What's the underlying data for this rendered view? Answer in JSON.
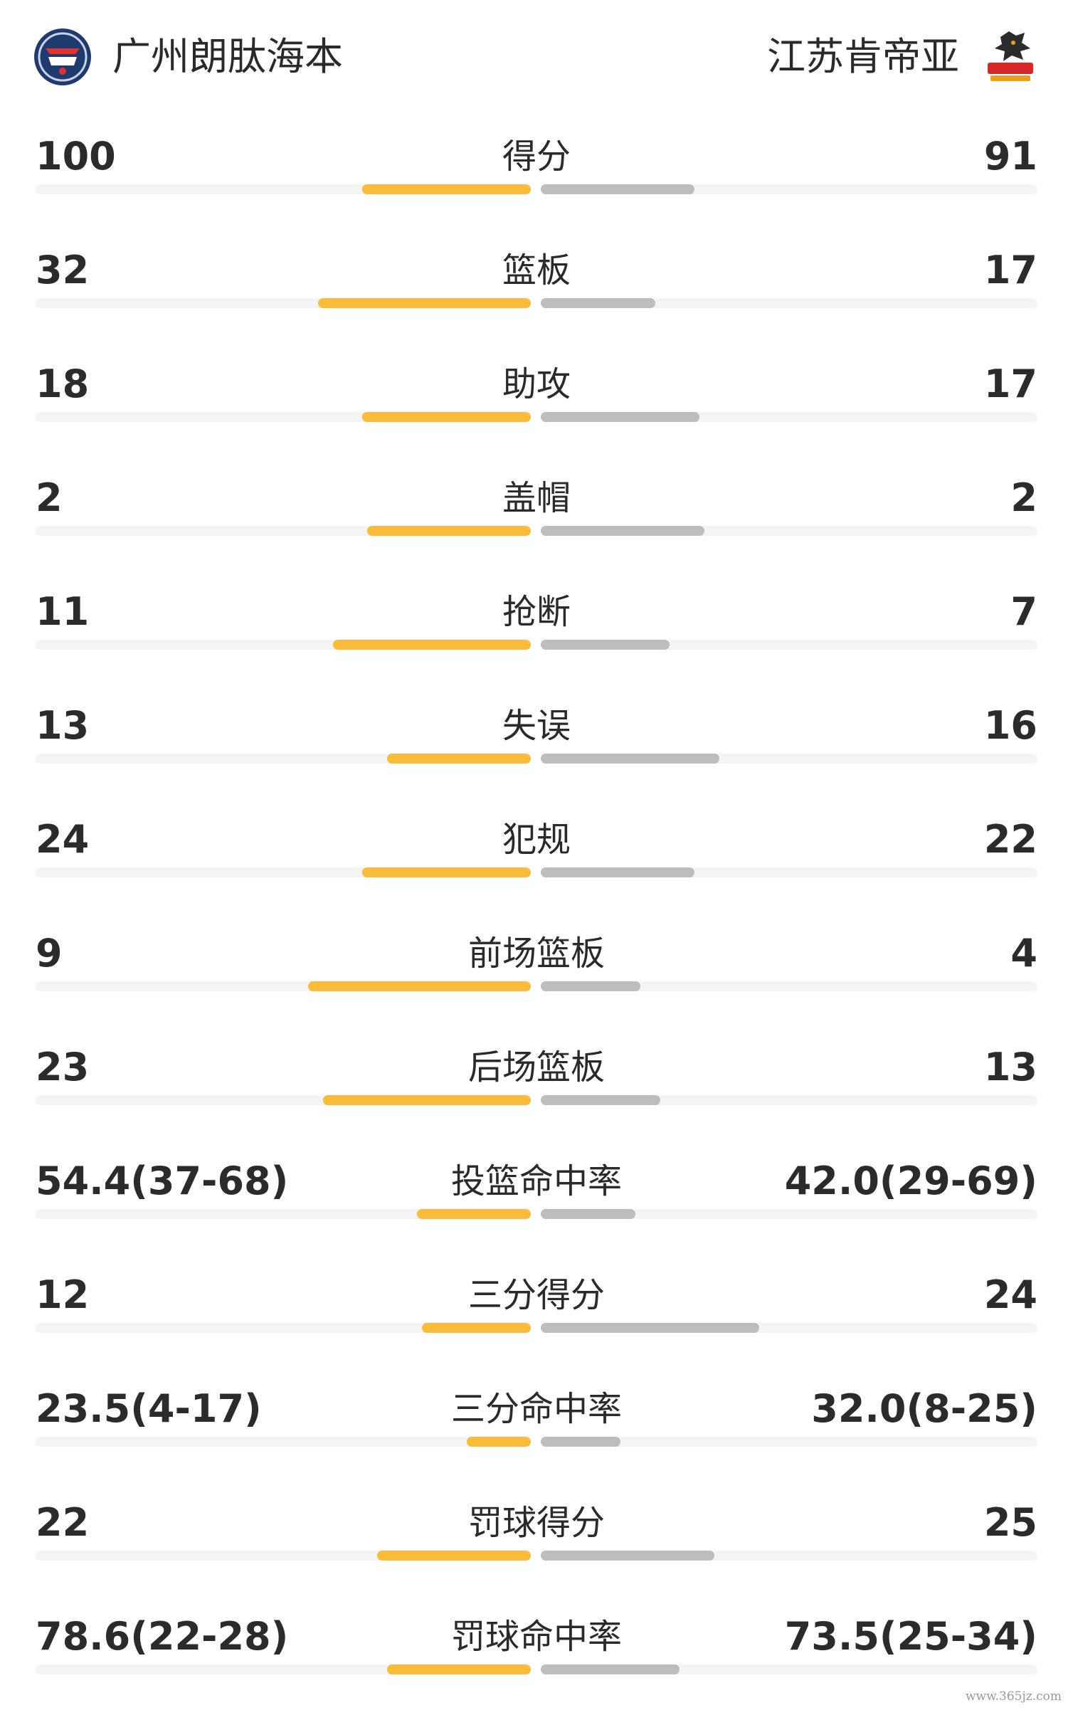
{
  "colors": {
    "home_bar": "#fbbd35",
    "away_bar": "#bdbdbd",
    "track": "#f4f4f4"
  },
  "teams": {
    "home": {
      "name": "广州朗肽海本",
      "logo_icon": "guangzhou-dragon-lions-logo-icon"
    },
    "away": {
      "name": "江苏肯帝亚",
      "logo_icon": "jiangsu-dragons-logo-icon"
    }
  },
  "stats": [
    {
      "label": "得分",
      "home": "100",
      "away": "91",
      "home_ratio": 0.34,
      "away_ratio": 0.31
    },
    {
      "label": "篮板",
      "home": "32",
      "away": "17",
      "home_ratio": 0.43,
      "away_ratio": 0.23
    },
    {
      "label": "助攻",
      "home": "18",
      "away": "17",
      "home_ratio": 0.34,
      "away_ratio": 0.32
    },
    {
      "label": "盖帽",
      "home": "2",
      "away": "2",
      "home_ratio": 0.33,
      "away_ratio": 0.33
    },
    {
      "label": "抢断",
      "home": "11",
      "away": "7",
      "home_ratio": 0.4,
      "away_ratio": 0.26
    },
    {
      "label": "失误",
      "home": "13",
      "away": "16",
      "home_ratio": 0.29,
      "away_ratio": 0.36
    },
    {
      "label": "犯规",
      "home": "24",
      "away": "22",
      "home_ratio": 0.34,
      "away_ratio": 0.31
    },
    {
      "label": "前场篮板",
      "home": "9",
      "away": "4",
      "home_ratio": 0.45,
      "away_ratio": 0.2
    },
    {
      "label": "后场篮板",
      "home": "23",
      "away": "13",
      "home_ratio": 0.42,
      "away_ratio": 0.24
    },
    {
      "label": "投篮命中率",
      "home": "54.4(37-68)",
      "away": "42.0(29-69)",
      "home_ratio": 0.23,
      "away_ratio": 0.19
    },
    {
      "label": "三分得分",
      "home": "12",
      "away": "24",
      "home_ratio": 0.22,
      "away_ratio": 0.44
    },
    {
      "label": "三分命中率",
      "home": "23.5(4-17)",
      "away": "32.0(8-25)",
      "home_ratio": 0.13,
      "away_ratio": 0.16
    },
    {
      "label": "罚球得分",
      "home": "22",
      "away": "25",
      "home_ratio": 0.31,
      "away_ratio": 0.35
    },
    {
      "label": "罚球命中率",
      "home": "78.6(22-28)",
      "away": "73.5(25-34)",
      "home_ratio": 0.29,
      "away_ratio": 0.28
    }
  ],
  "watermark": "www.365jz.com"
}
